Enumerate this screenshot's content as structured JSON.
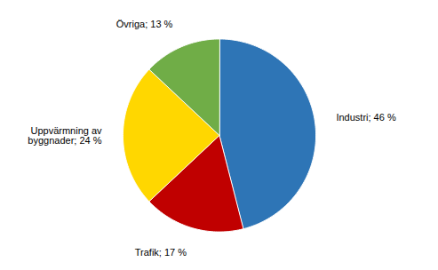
{
  "chart_data": {
    "type": "pie",
    "categories": [
      "Industri; 46 %",
      "Trafik; 17 %",
      "Uppvärmning av\nbyggnader; 24 %",
      "Övriga; 13 %"
    ],
    "values": [
      46,
      17,
      24,
      13
    ],
    "colors": [
      "#2E75B6",
      "#C00000",
      "#FFD700",
      "#70AD47"
    ]
  }
}
